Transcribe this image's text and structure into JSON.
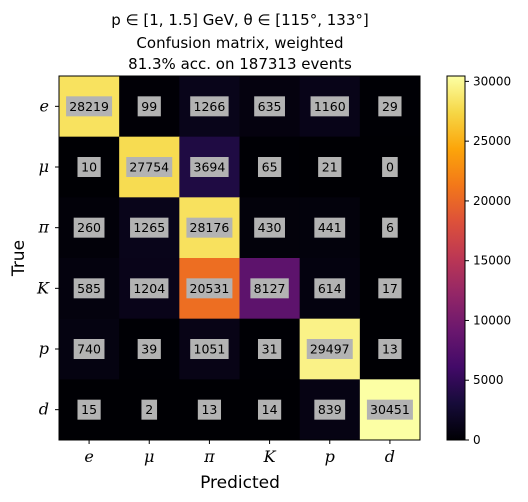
{
  "chart_data": {
    "type": "heatmap",
    "title_lines": [
      "p ∈ [1, 1.5] GeV, θ ∈ [115°, 133°]",
      "Confusion matrix, weighted",
      "81.3% acc. on 187313 events"
    ],
    "xlabel": "Predicted",
    "ylabel": "True",
    "x_categories": [
      "e",
      "μ",
      "π",
      "K",
      "p",
      "d"
    ],
    "y_categories": [
      "e",
      "μ",
      "π",
      "K",
      "p",
      "d"
    ],
    "values": [
      [
        28219,
        99,
        1266,
        635,
        1160,
        29
      ],
      [
        10,
        27754,
        3694,
        65,
        21,
        0
      ],
      [
        260,
        1265,
        28176,
        430,
        441,
        6
      ],
      [
        585,
        1204,
        20531,
        8127,
        614,
        17
      ],
      [
        740,
        39,
        1051,
        31,
        29497,
        13
      ],
      [
        15,
        2,
        13,
        14,
        839,
        30451
      ]
    ],
    "colormap": "inferno",
    "color_range": [
      0,
      30451
    ],
    "colorbar_ticks": [
      "0",
      "5000",
      "10000",
      "15000",
      "20000",
      "25000",
      "30000"
    ],
    "colorbar_tick_values": [
      0,
      5000,
      10000,
      15000,
      20000,
      25000,
      30000
    ],
    "cell_label_box_color": "#b3b3b3"
  }
}
